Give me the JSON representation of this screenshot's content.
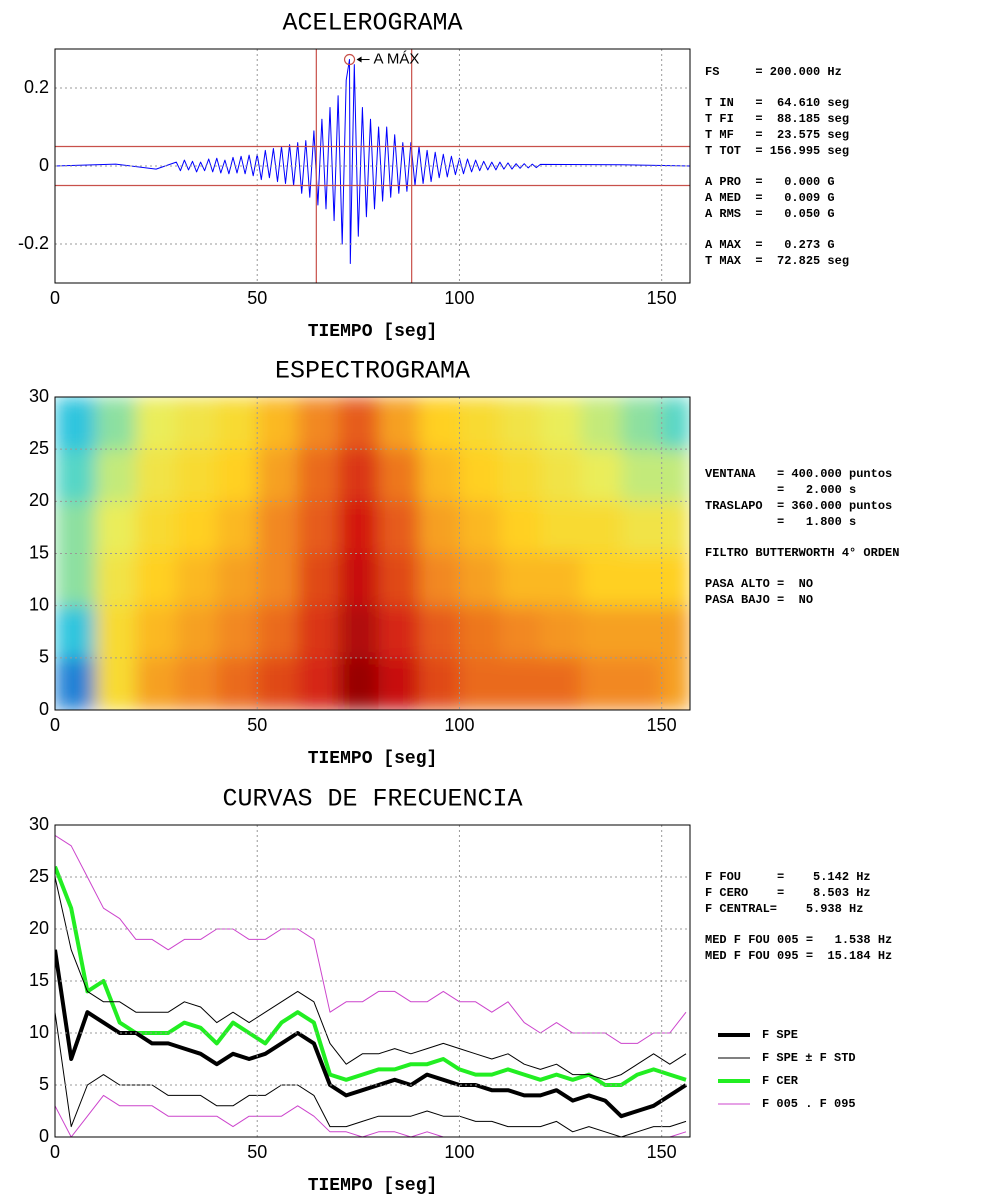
{
  "chart_data": [
    {
      "type": "line",
      "title": "ACELEROGRAMA",
      "xlabel": "TIEMPO [seg]",
      "xlim": [
        0,
        157
      ],
      "xticks": [
        0,
        50,
        100,
        150
      ],
      "ylim": [
        -0.3,
        0.3
      ],
      "yticks": [
        -0.2,
        0,
        0.2
      ],
      "grid": true,
      "x": [
        0,
        15,
        25,
        30,
        31,
        32,
        33,
        34,
        35,
        36,
        37,
        38,
        39,
        40,
        41,
        42,
        43,
        44,
        45,
        46,
        47,
        48,
        49,
        50,
        51,
        52,
        53,
        54,
        55,
        56,
        57,
        58,
        59,
        60,
        61,
        62,
        63,
        64,
        65,
        66,
        67,
        68,
        69,
        70,
        71,
        72,
        72.825,
        73,
        74,
        75,
        76,
        77,
        78,
        79,
        80,
        81,
        82,
        83,
        84,
        85,
        86,
        87,
        88,
        89,
        90,
        91,
        92,
        93,
        94,
        95,
        96,
        97,
        98,
        99,
        100,
        101,
        102,
        103,
        104,
        105,
        106,
        107,
        108,
        109,
        110,
        111,
        112,
        113,
        114,
        115,
        116,
        117,
        118,
        119,
        120,
        140,
        157
      ],
      "series": [
        {
          "color": "#0000ff",
          "values": [
            0,
            0.005,
            -0.008,
            0.01,
            -0.012,
            0.015,
            -0.01,
            0.012,
            -0.015,
            0.01,
            -0.012,
            0.018,
            -0.015,
            0.02,
            -0.018,
            0.015,
            -0.02,
            0.022,
            -0.018,
            0.025,
            -0.02,
            0.028,
            -0.025,
            0.03,
            -0.035,
            0.04,
            -0.03,
            0.045,
            -0.04,
            0.05,
            -0.045,
            0.055,
            -0.05,
            0.06,
            -0.07,
            0.065,
            -0.08,
            0.09,
            -0.1,
            0.12,
            -0.11,
            0.15,
            -0.14,
            0.18,
            -0.2,
            0.22,
            0.273,
            -0.25,
            0.26,
            -0.18,
            0.15,
            -0.13,
            0.12,
            -0.11,
            0.1,
            -0.09,
            0.1,
            -0.08,
            0.08,
            -0.07,
            0.06,
            -0.065,
            0.06,
            -0.05,
            0.05,
            -0.045,
            0.04,
            -0.04,
            0.035,
            -0.03,
            0.03,
            -0.028,
            0.025,
            -0.022,
            0.02,
            -0.02,
            0.018,
            -0.015,
            0.015,
            -0.012,
            0.012,
            -0.01,
            0.01,
            -0.01,
            0.01,
            -0.008,
            0.008,
            -0.008,
            0.006,
            -0.006,
            0.006,
            -0.005,
            0.005,
            -0.004,
            0.004,
            0.003,
            0
          ]
        }
      ],
      "vlines": [
        64.61,
        88.185
      ],
      "hlines": [
        0.05,
        -0.05
      ],
      "ref_color": "#c8504a",
      "annotation": {
        "text": "A MÁX",
        "x": 72.825,
        "y": 0.273
      },
      "info": [
        [
          "FS     = 200.000 Hz"
        ],
        [
          "T IN   =  64.610 seg",
          "T FI   =  88.185 seg",
          "T MF   =  23.575 seg",
          "T TOT  = 156.995 seg"
        ],
        [
          "A PRO  =   0.000 G",
          "A MED  =   0.009 G",
          "A RMS  =   0.050 G"
        ],
        [
          "A MAX  =   0.273 G",
          "T MAX  =  72.825 seg"
        ]
      ]
    },
    {
      "type": "heatmap",
      "title": "ESPECTROGRAMA",
      "xlabel": "TIEMPO [seg]",
      "xlim": [
        0,
        157
      ],
      "xticks": [
        0,
        50,
        100,
        150
      ],
      "ylim": [
        0,
        30
      ],
      "yticks": [
        0,
        5,
        10,
        15,
        20,
        25,
        30
      ],
      "grid": true,
      "xbins": [
        0,
        10,
        20,
        30,
        40,
        50,
        60,
        70,
        80,
        90,
        100,
        110,
        120,
        130,
        140,
        150,
        157
      ],
      "ybins": [
        0,
        5,
        10,
        15,
        20,
        25,
        30
      ],
      "zlim": [
        0,
        1
      ],
      "colorscale": [
        "#1a5fd0",
        "#30d0e0",
        "#e8f060",
        "#ffd020",
        "#f08020",
        "#d01010",
        "#800000"
      ],
      "values": [
        [
          0.05,
          0.45,
          0.6,
          0.65,
          0.7,
          0.75,
          0.8,
          0.95,
          0.85,
          0.75,
          0.7,
          0.7,
          0.7,
          0.65,
          0.65,
          0.6
        ],
        [
          0.15,
          0.45,
          0.55,
          0.6,
          0.65,
          0.7,
          0.78,
          0.9,
          0.8,
          0.72,
          0.68,
          0.65,
          0.62,
          0.6,
          0.6,
          0.6
        ],
        [
          0.25,
          0.4,
          0.5,
          0.55,
          0.6,
          0.65,
          0.75,
          0.85,
          0.75,
          0.65,
          0.6,
          0.55,
          0.55,
          0.5,
          0.5,
          0.5
        ],
        [
          0.25,
          0.35,
          0.45,
          0.5,
          0.55,
          0.65,
          0.72,
          0.82,
          0.72,
          0.6,
          0.55,
          0.5,
          0.45,
          0.45,
          0.4,
          0.4
        ],
        [
          0.2,
          0.3,
          0.4,
          0.45,
          0.5,
          0.6,
          0.7,
          0.78,
          0.68,
          0.55,
          0.5,
          0.45,
          0.4,
          0.35,
          0.3,
          0.3
        ],
        [
          0.15,
          0.25,
          0.35,
          0.4,
          0.45,
          0.55,
          0.65,
          0.72,
          0.6,
          0.5,
          0.45,
          0.4,
          0.35,
          0.3,
          0.25,
          0.2
        ]
      ],
      "info": [
        [
          "VENTANA   = 400.000 puntos",
          "          =   2.000 s",
          "TRASLAPO  = 360.000 puntos",
          "          =   1.800 s"
        ],
        [
          "FILTRO BUTTERWORTH 4° ORDEN"
        ],
        [
          "PASA ALTO =  NO",
          "PASA BAJO =  NO"
        ]
      ]
    },
    {
      "type": "line",
      "title": "CURVAS DE FRECUENCIA",
      "xlabel": "TIEMPO [seg]",
      "xlim": [
        0,
        157
      ],
      "xticks": [
        0,
        50,
        100,
        150
      ],
      "ylim": [
        0,
        30
      ],
      "yticks": [
        0,
        5,
        10,
        15,
        20,
        25,
        30
      ],
      "grid": true,
      "x": [
        0,
        4,
        8,
        12,
        16,
        20,
        24,
        28,
        32,
        36,
        40,
        44,
        48,
        52,
        56,
        60,
        64,
        68,
        72,
        76,
        80,
        84,
        88,
        92,
        96,
        100,
        104,
        108,
        112,
        116,
        120,
        124,
        128,
        132,
        136,
        140,
        144,
        148,
        152,
        156
      ],
      "series": [
        {
          "name": "F SPE",
          "color": "#000000",
          "line_width": 4,
          "values": [
            18,
            7.5,
            12,
            11,
            10,
            10,
            9,
            9,
            8.5,
            8,
            7,
            8,
            7.5,
            8,
            9,
            10,
            9,
            5,
            4,
            4.5,
            5,
            5.5,
            5,
            6,
            5.5,
            5,
            5,
            4.5,
            4.5,
            4,
            4,
            4.5,
            3.5,
            4,
            3.5,
            2,
            2.5,
            3,
            4,
            5
          ]
        },
        {
          "name": "F SPE ± F STD",
          "color": "#000000",
          "line_width": 1,
          "upper": [
            25,
            18,
            14,
            13,
            13,
            12,
            12,
            12,
            13,
            12.5,
            11,
            12,
            11,
            12,
            13,
            14,
            13,
            9,
            7,
            8,
            8,
            8.5,
            8,
            8.5,
            9,
            8.5,
            8,
            7.5,
            8,
            7,
            6.5,
            7,
            6,
            6,
            5.5,
            6,
            7,
            8,
            7,
            8
          ],
          "lower": [
            12,
            1,
            5,
            6,
            5,
            5,
            5,
            4,
            4,
            4,
            3,
            3,
            4,
            4,
            5,
            5,
            4,
            1,
            1,
            1.5,
            2,
            2,
            2,
            2.5,
            2,
            2,
            1.5,
            1.5,
            1,
            1,
            1,
            1.5,
            0.5,
            1,
            0.5,
            0,
            0.5,
            1,
            1,
            1.5
          ]
        },
        {
          "name": "F CER",
          "color": "#22ee22",
          "line_width": 4,
          "values": [
            26,
            22,
            14,
            15,
            11,
            10,
            10,
            10,
            11,
            10.5,
            9,
            11,
            10,
            9,
            11,
            12,
            11,
            6,
            5.5,
            6,
            6.5,
            6.5,
            7,
            7,
            7.5,
            6.5,
            6,
            6,
            6.5,
            6,
            5.5,
            6,
            5.5,
            6,
            5,
            5,
            6,
            6.5,
            6,
            5.5
          ]
        },
        {
          "name": "F 005 . F 095",
          "color": "#cc44cc",
          "line_width": 1,
          "upper": [
            29,
            28,
            25,
            22,
            21,
            19,
            19,
            18,
            19,
            19,
            20,
            20,
            19,
            19,
            20,
            20,
            19,
            12,
            13,
            13,
            14,
            14,
            13,
            13,
            14,
            13,
            13,
            12,
            13,
            11,
            10,
            11,
            10,
            10,
            10,
            9,
            9,
            10,
            10,
            12
          ],
          "lower": [
            3,
            0,
            2,
            4,
            3,
            3,
            3,
            2,
            2,
            2,
            2,
            1,
            2,
            2,
            2,
            3,
            2,
            0.5,
            0.5,
            0,
            0.5,
            0.5,
            0,
            0.5,
            0,
            0,
            0,
            0,
            0,
            0,
            0,
            0,
            0,
            0,
            0,
            0,
            0,
            0,
            0,
            0.5
          ]
        }
      ],
      "info": [
        [
          "F FOU     =    5.142 Hz",
          "F CERO    =    8.503 Hz",
          "F CENTRAL=    5.938 Hz"
        ],
        [
          "MED F FOU 005 =   1.538 Hz",
          "MED F FOU 095 =  15.184 Hz"
        ]
      ]
    }
  ]
}
